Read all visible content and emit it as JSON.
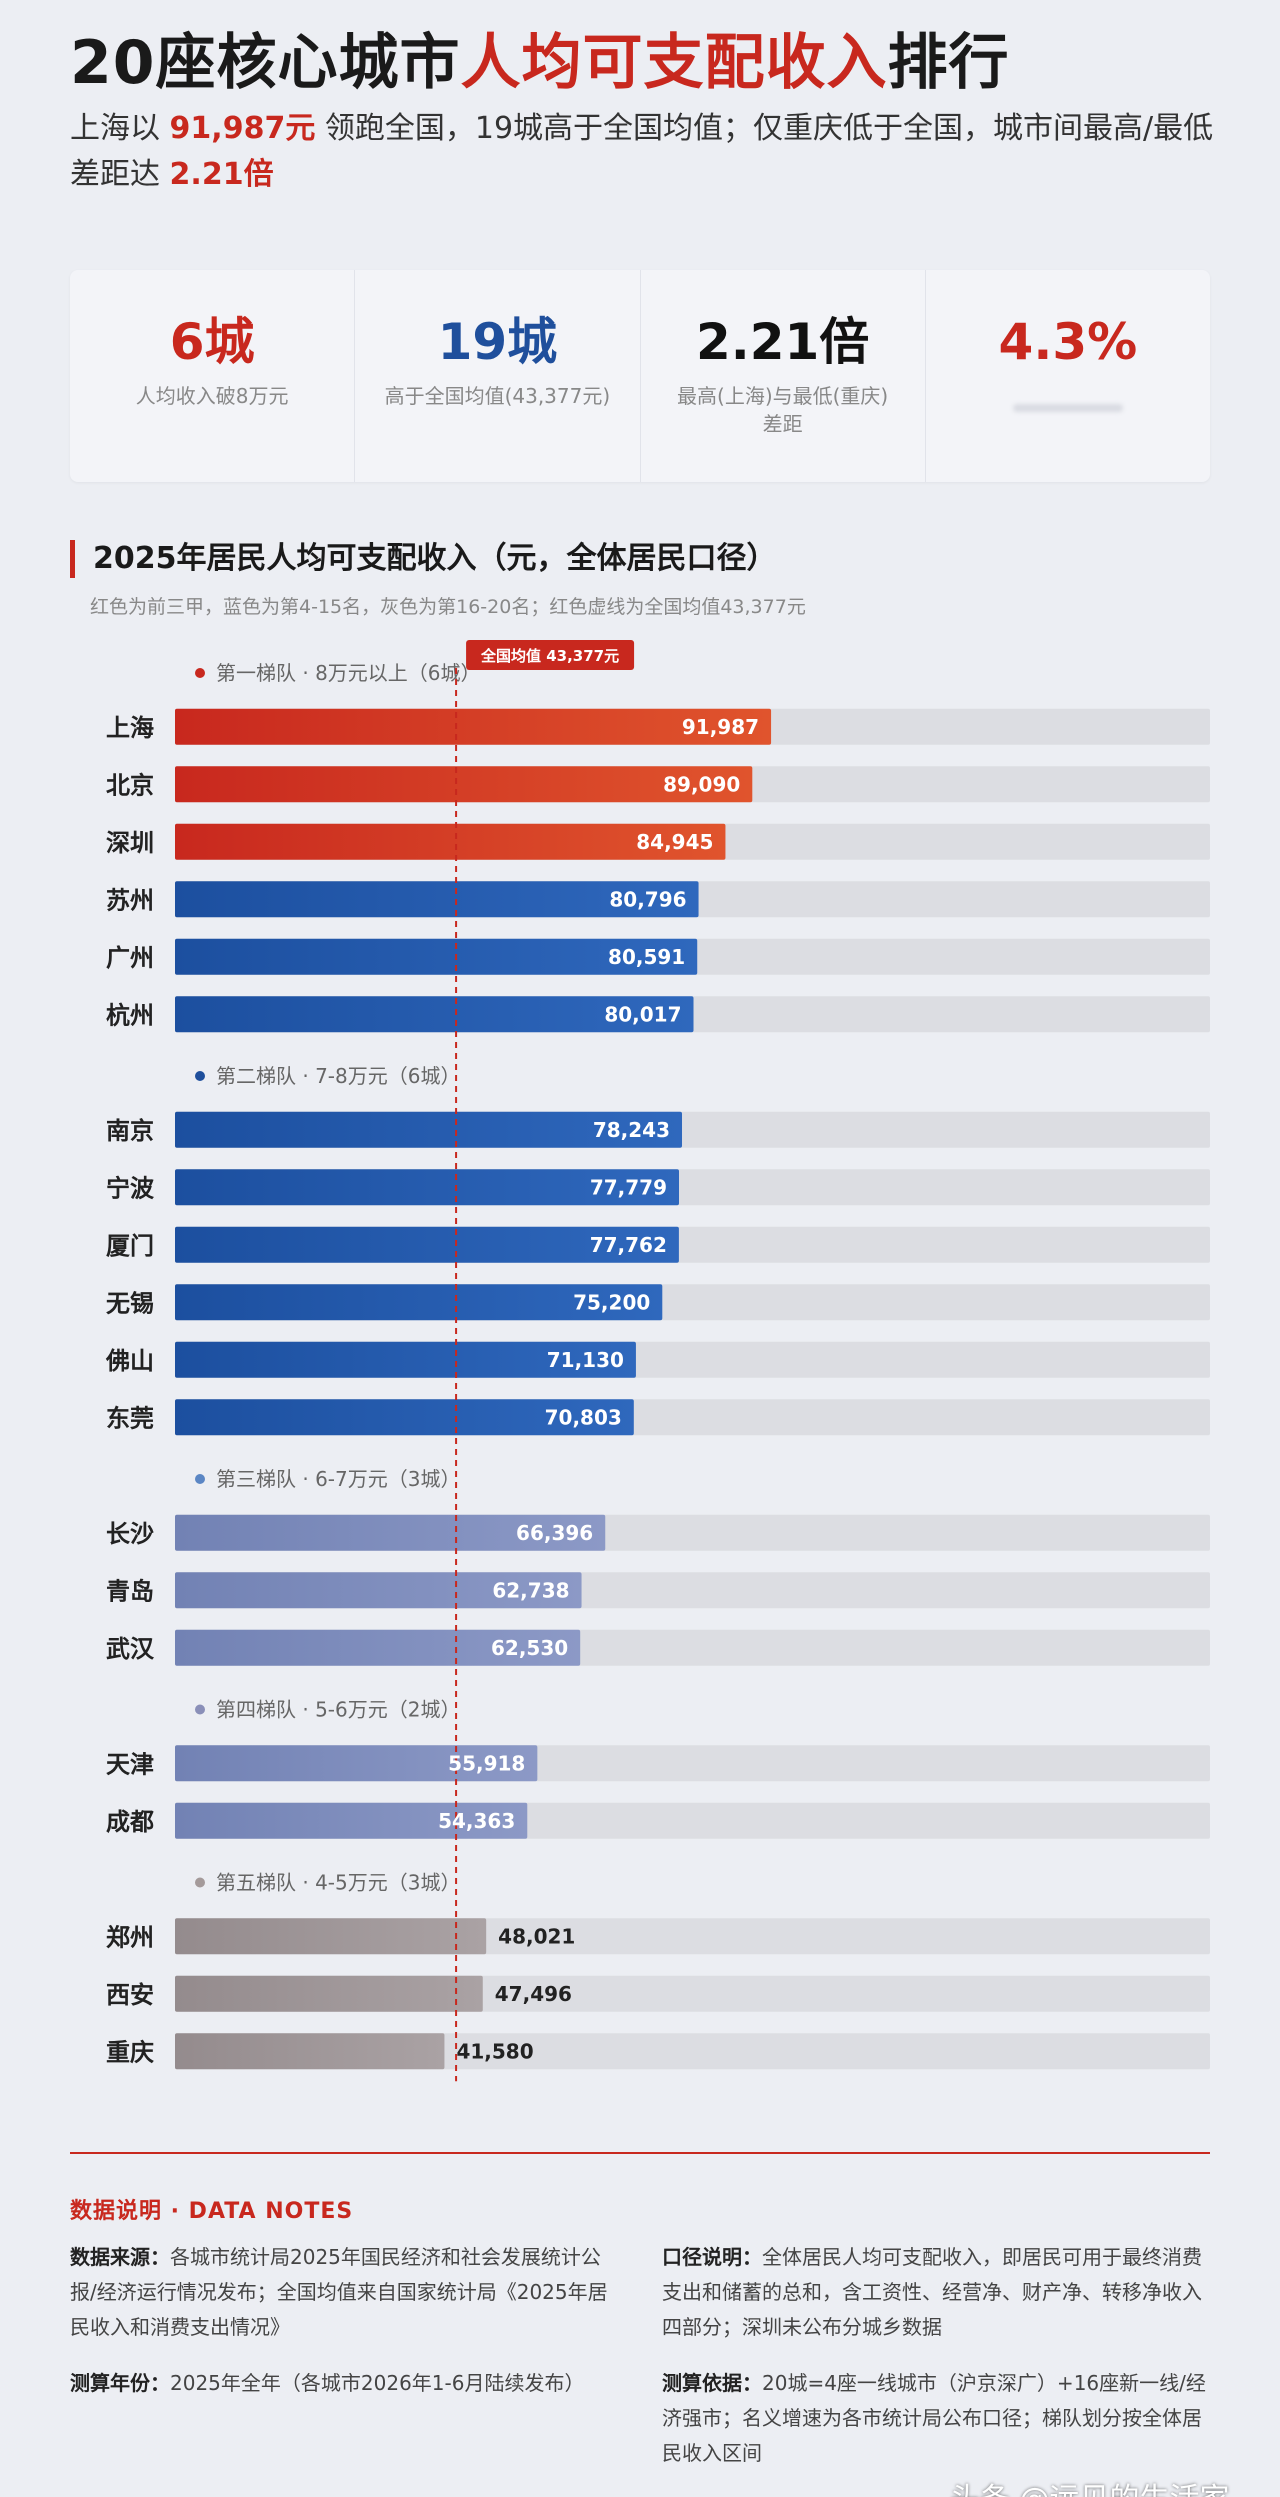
{
  "header": {
    "title_prefix": "20座核心城市",
    "title_highlight": "人均可支配收入",
    "title_suffix": "排行",
    "subtitle_a": "上海以 ",
    "subtitle_b": "91,987元",
    "subtitle_c": " 领跑全国，19城高于全国均值；仅重庆低于全国，城市间最高/最低差距达 ",
    "subtitle_d": "2.21倍"
  },
  "stats": [
    {
      "value": "6城",
      "label": "人均收入破8万元",
      "color": "#c8281e"
    },
    {
      "value": "19城",
      "label": "高于全国均值(43,377元)",
      "color": "#1f4f9c"
    },
    {
      "value": "2.21倍",
      "label": "最高(上海)与最低(重庆)差距",
      "color": "#111111"
    },
    {
      "value": "4.3%",
      "label": "",
      "color": "#c8281e"
    }
  ],
  "chart_data": {
    "type": "bar",
    "orientation": "horizontal",
    "title": "2025年居民人均可支配收入（元，全体居民口径）",
    "subtitle": "红色为前三甲，蓝色为第4-15名，灰色为第16-20名；红色虚线为全国均值43,377元",
    "reference_line": {
      "label": "全国均值 43,377元",
      "value": 43377
    },
    "groups": [
      {
        "label": "第一梯队 · 8万元以上（6城）",
        "dot_color": "#c8281e",
        "items": [
          {
            "city": "上海",
            "value": 91987,
            "label": "91,987",
            "color": "red"
          },
          {
            "city": "北京",
            "value": 89090,
            "label": "89,090",
            "color": "red"
          },
          {
            "city": "深圳",
            "value": 84945,
            "label": "84,945",
            "color": "red"
          },
          {
            "city": "苏州",
            "value": 80796,
            "label": "80,796",
            "color": "blue"
          },
          {
            "city": "广州",
            "value": 80591,
            "label": "80,591",
            "color": "blue"
          },
          {
            "city": "杭州",
            "value": 80017,
            "label": "80,017",
            "color": "blue"
          }
        ]
      },
      {
        "label": "第二梯队 · 7-8万元（6城）",
        "dot_color": "#1f4f9c",
        "items": [
          {
            "city": "南京",
            "value": 78243,
            "label": "78,243",
            "color": "blue"
          },
          {
            "city": "宁波",
            "value": 77779,
            "label": "77,779",
            "color": "blue"
          },
          {
            "city": "厦门",
            "value": 77762,
            "label": "77,762",
            "color": "blue"
          },
          {
            "city": "无锡",
            "value": 75200,
            "label": "75,200",
            "color": "blue"
          },
          {
            "city": "佛山",
            "value": 71130,
            "label": "71,130",
            "color": "blue"
          },
          {
            "city": "东莞",
            "value": 70803,
            "label": "70,803",
            "color": "blue"
          }
        ]
      },
      {
        "label": "第三梯队 · 6-7万元（3城）",
        "dot_color": "#5b86c4",
        "items": [
          {
            "city": "长沙",
            "value": 66396,
            "label": "66,396",
            "color": "lightblue"
          },
          {
            "city": "青岛",
            "value": 62738,
            "label": "62,738",
            "color": "lightblue"
          },
          {
            "city": "武汉",
            "value": 62530,
            "label": "62,530",
            "color": "lightblue"
          }
        ]
      },
      {
        "label": "第四梯队 · 5-6万元（2城）",
        "dot_color": "#8a8fb8",
        "items": [
          {
            "city": "天津",
            "value": 55918,
            "label": "55,918",
            "color": "lightblue"
          },
          {
            "city": "成都",
            "value": 54363,
            "label": "54,363",
            "color": "lightblue"
          }
        ]
      },
      {
        "label": "第五梯队 · 4-5万元（3城）",
        "dot_color": "#a49a9a",
        "items": [
          {
            "city": "郑州",
            "value": 48021,
            "label": "48,021",
            "color": "gray"
          },
          {
            "city": "西安",
            "value": 47496,
            "label": "47,496",
            "color": "gray"
          },
          {
            "city": "重庆",
            "value": 41580,
            "label": "41,580",
            "color": "gray"
          }
        ]
      }
    ],
    "colors": {
      "red": [
        "#c8281e",
        "#e0542d"
      ],
      "blue": [
        "#1c4f9f",
        "#2f68bd"
      ],
      "lightblue": [
        "#7282b4",
        "#8c99c6"
      ],
      "gray": [
        "#948b8d",
        "#aaa2a4"
      ],
      "track": "#dcdde2",
      "reference": "#c8281e"
    }
  },
  "notes": {
    "head": "数据说明 · DATA NOTES",
    "source_label": "数据来源：",
    "source_text": "各城市统计局2025年国民经济和社会发展统计公报/经济运行情况发布；全国均值来自国家统计局《2025年居民收入和消费支出情况》",
    "year_label": "测算年份：",
    "year_text": "2025年全年（各城市2026年1-6月陆续发布）",
    "scope_label": "口径说明：",
    "scope_text": "全体居民人均可支配收入，即居民可用于最终消费支出和储蓄的总和，含工资性、经营净、财产净、转移净收入四部分；深圳未公布分城乡数据",
    "basis_label": "测算依据：",
    "basis_text": "20城=4座一线城市（沪京深广）+16座新一线/经济强市；名义增速为各市统计局公布口径；梯队划分按全体居民收入区间"
  },
  "watermark": "头条 @远见的生活家"
}
